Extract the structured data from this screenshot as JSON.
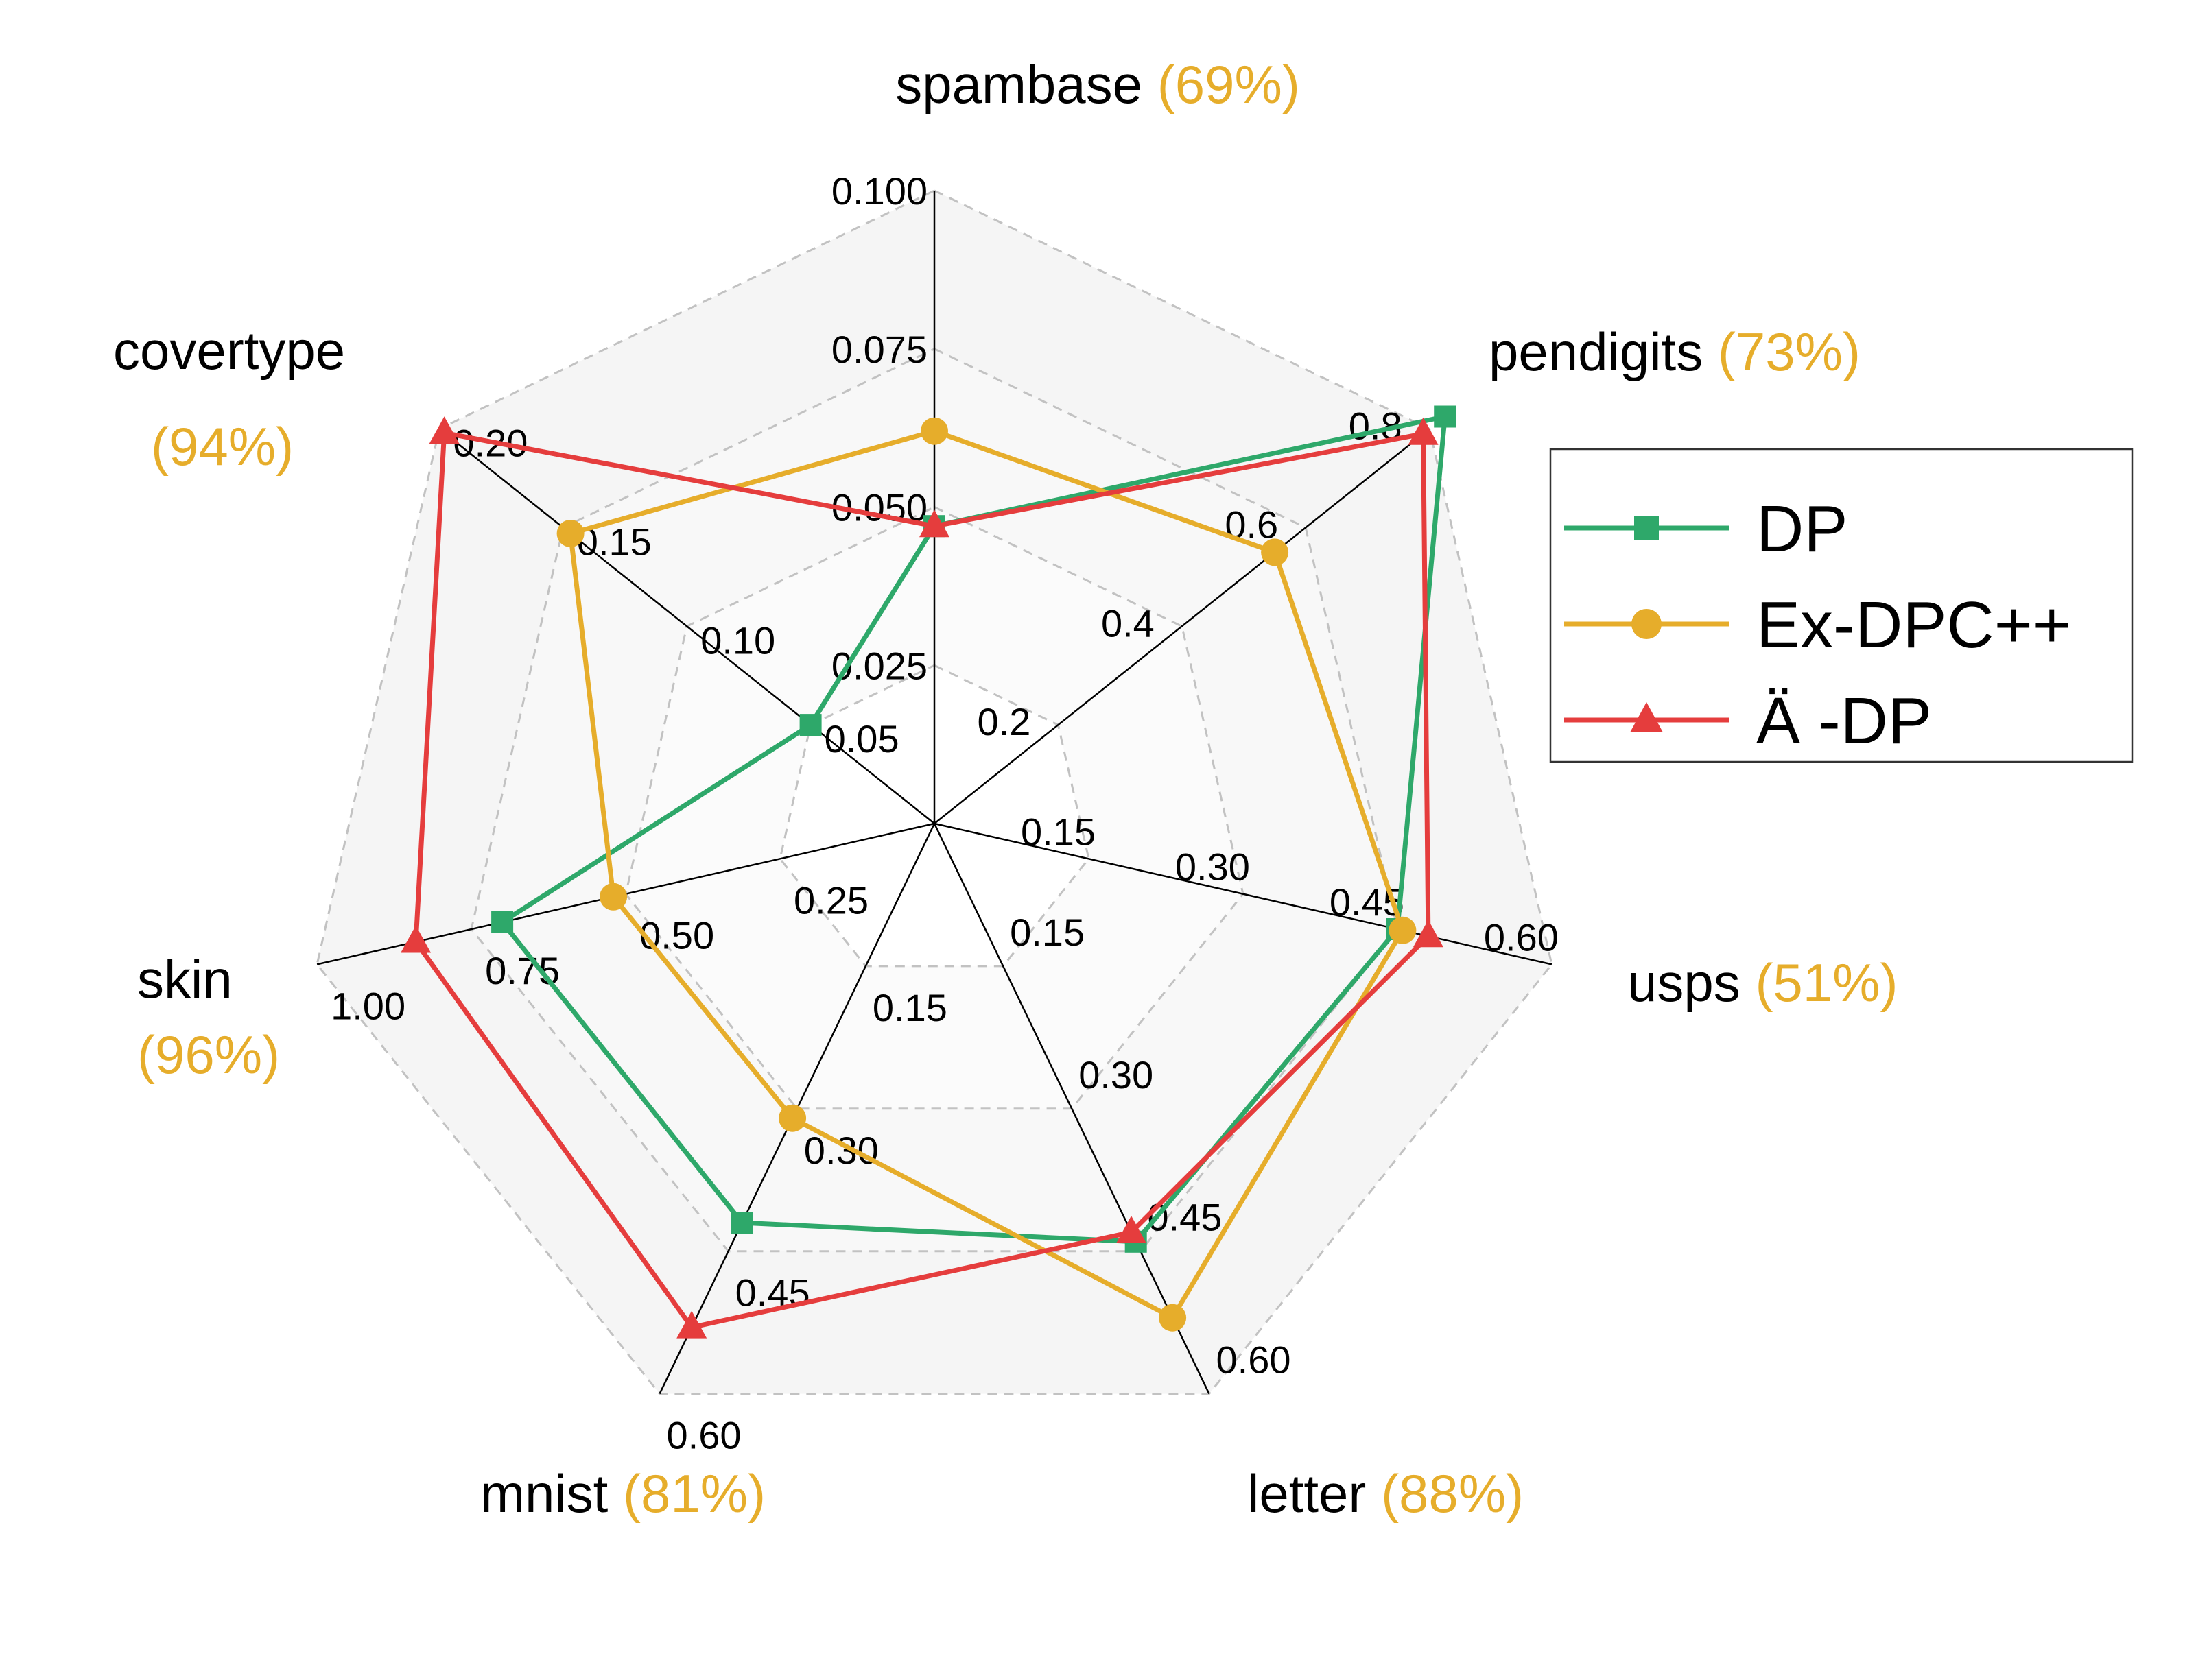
{
  "chart_data": {
    "type": "radar",
    "axes": [
      {
        "name": "spambase",
        "pct": "(69%)",
        "ticks": [
          "0.025",
          "0.050",
          "0.075",
          "0.100"
        ],
        "range": [
          0,
          0.1
        ]
      },
      {
        "name": "pendigits",
        "pct": "(73%)",
        "ticks": [
          "0.2",
          "0.4",
          "0.6",
          "0.8"
        ],
        "range": [
          0,
          0.8
        ]
      },
      {
        "name": "usps",
        "pct": "(51%)",
        "ticks": [
          "0.15",
          "0.30",
          "0.45",
          "0.60"
        ],
        "range": [
          0,
          0.6
        ]
      },
      {
        "name": "letter",
        "pct": "(88%)",
        "ticks": [
          "0.15",
          "0.30",
          "0.45",
          "0.60"
        ],
        "range": [
          0,
          0.6
        ]
      },
      {
        "name": "mnist",
        "pct": "(81%)",
        "ticks": [
          "0.15",
          "0.30",
          "0.45",
          "0.60"
        ],
        "range": [
          0,
          0.6
        ]
      },
      {
        "name": "skin",
        "pct": "(96%)",
        "ticks": [
          "0.25",
          "0.50",
          "0.75",
          "1.00"
        ],
        "range": [
          0,
          1.0
        ]
      },
      {
        "name": "covertype",
        "pct": "(94%)",
        "ticks": [
          "0.05",
          "0.10",
          "0.15",
          "0.20"
        ],
        "range": [
          0,
          0.2
        ]
      }
    ],
    "series": [
      {
        "name": "DP",
        "color": "#2ea86a",
        "marker": "square",
        "values": [
          0.047,
          0.825,
          0.45,
          0.44,
          0.42,
          0.7,
          0.05
        ]
      },
      {
        "name": "Ex-DPC++",
        "color": "#e6ad2b",
        "marker": "circle",
        "values": [
          0.062,
          0.55,
          0.455,
          0.52,
          0.31,
          0.52,
          0.147
        ]
      },
      {
        "name": "Ä -DP",
        "color": "#e53d3d",
        "marker": "triangle",
        "values": [
          0.047,
          0.79,
          0.48,
          0.43,
          0.53,
          0.84,
          0.198
        ]
      }
    ],
    "grid": "dashed",
    "legend_position": "right"
  },
  "colors": {
    "pct_label": "#e6ad2b",
    "grid": "#c2c2c2",
    "axis": "#000000"
  }
}
